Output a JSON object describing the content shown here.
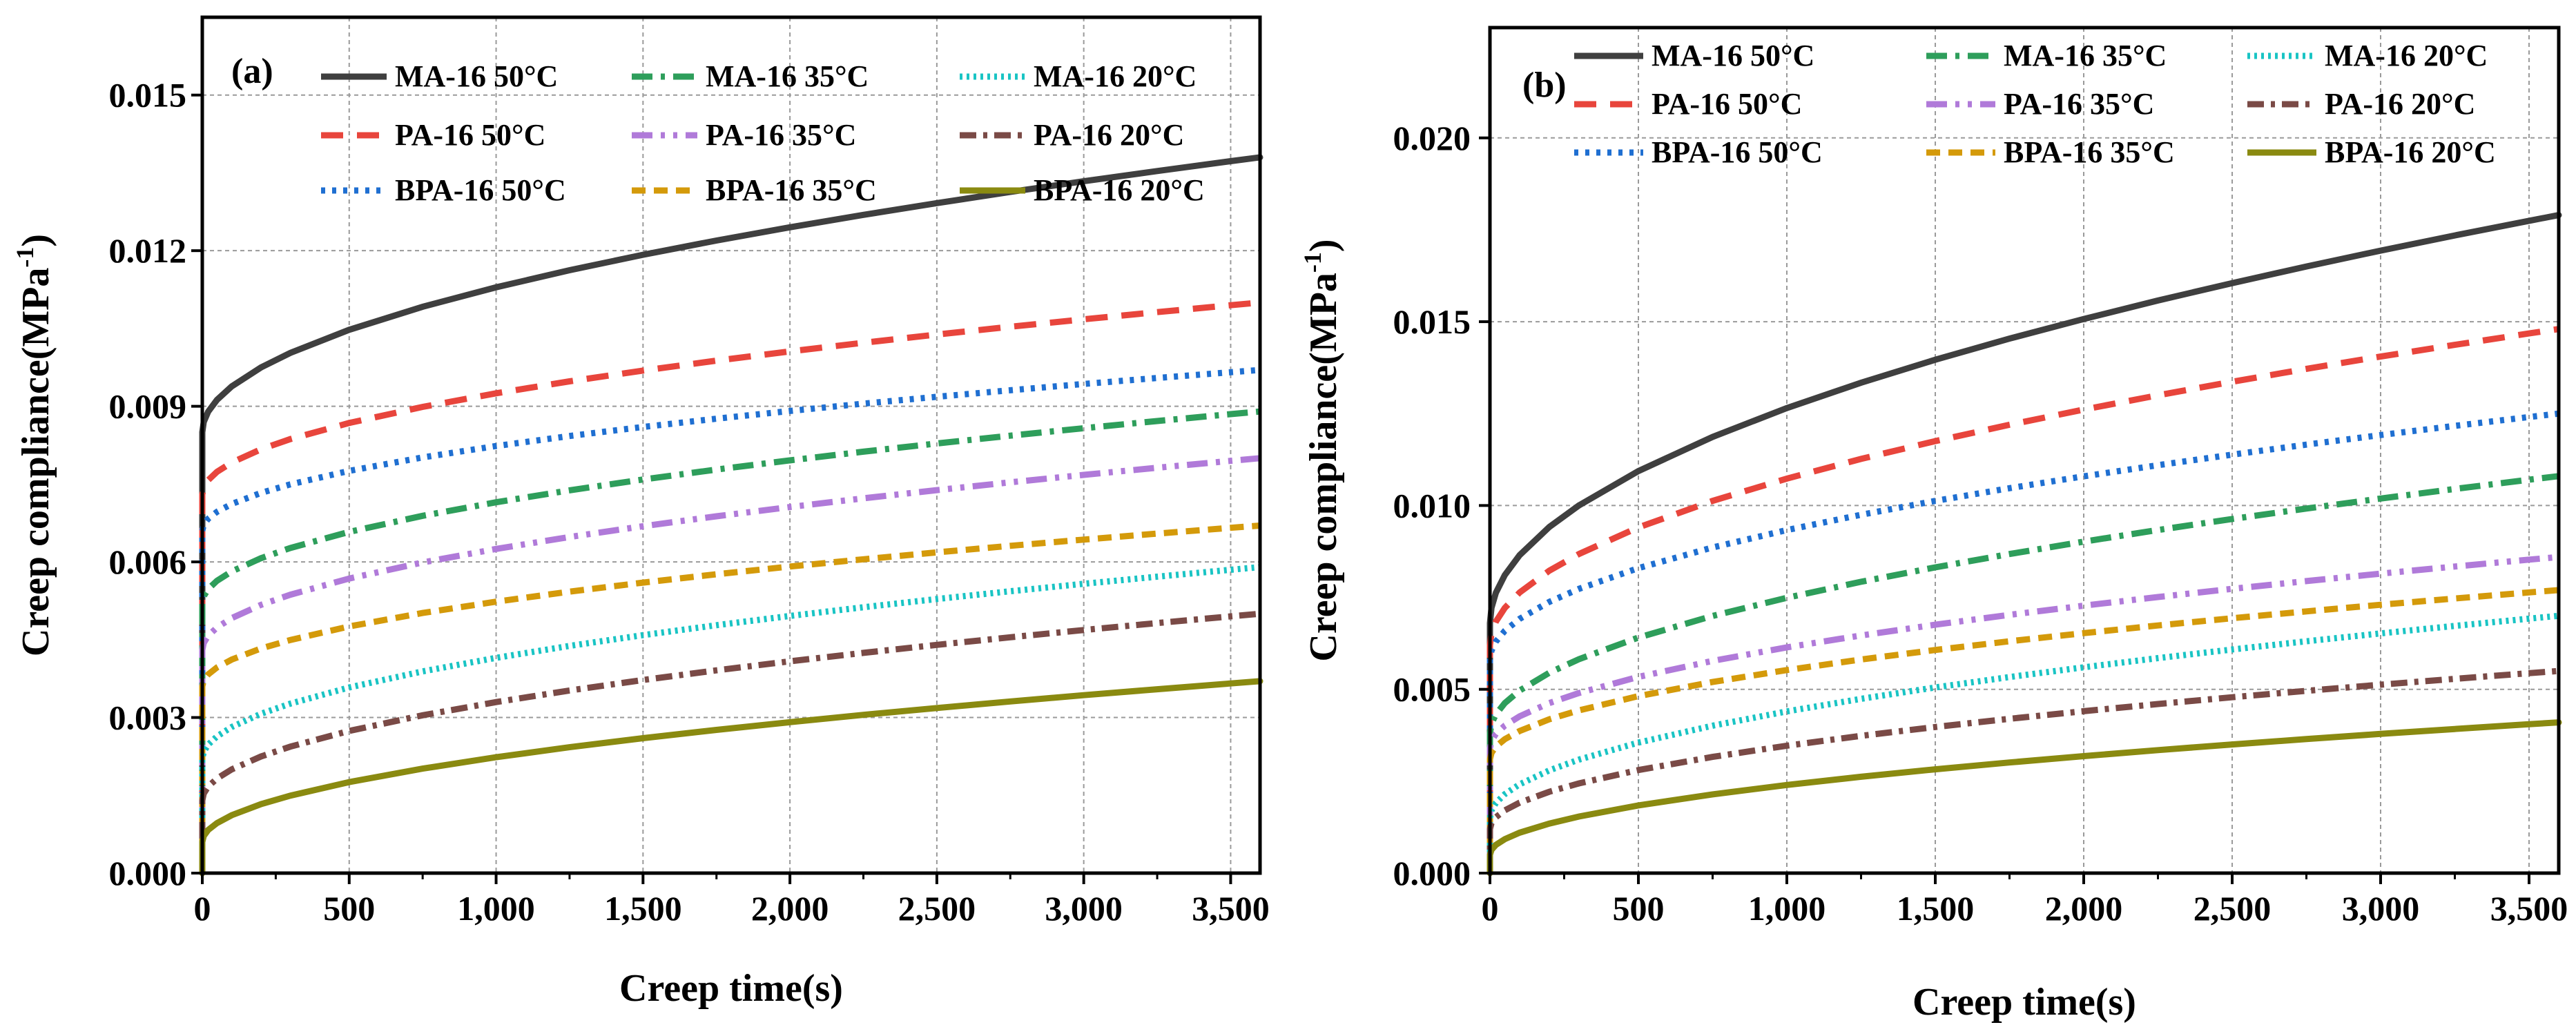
{
  "chart_data": [
    {
      "type": "line",
      "panel_label": "(a)",
      "xlabel": "Creep time(s)",
      "ylabel_main": "Creep compliance(MPa",
      "ylabel_sup": "-1",
      "ylabel_close": ")",
      "xlim": [
        0,
        3600
      ],
      "ylim": [
        0,
        0.0165
      ],
      "xticks": [
        0,
        500,
        1000,
        1500,
        2000,
        2500,
        3000,
        3500
      ],
      "xtick_labels": [
        "0",
        "500",
        "1,000",
        "1,500",
        "2,000",
        "2,500",
        "3,000",
        "3,500"
      ],
      "yticks": [
        0,
        0.003,
        0.006,
        0.009,
        0.012,
        0.015
      ],
      "ytick_labels": [
        "0.000",
        "0.003",
        "0.006",
        "0.009",
        "0.012",
        "0.015"
      ],
      "grid": true,
      "legend_position": "top",
      "x": [
        0,
        5,
        20,
        50,
        100,
        200,
        300,
        500,
        750,
        1000,
        1250,
        1500,
        1750,
        2000,
        2250,
        2500,
        2750,
        3000,
        3250,
        3500,
        3600
      ],
      "series": [
        {
          "name": "MA-16 50°C",
          "start": 0.0085,
          "end": 0.0138
        },
        {
          "name": "PA-16 50°C",
          "start": 0.0073,
          "end": 0.011
        },
        {
          "name": "BPA-16 50°C",
          "start": 0.0066,
          "end": 0.0097
        },
        {
          "name": "MA-16 35°C",
          "start": 0.0052,
          "end": 0.0089
        },
        {
          "name": "PA-16 35°C",
          "start": 0.0043,
          "end": 0.008
        },
        {
          "name": "BPA-16 35°C",
          "start": 0.0036,
          "end": 0.0067
        },
        {
          "name": "MA-16 20°C",
          "start": 0.0022,
          "end": 0.0059
        },
        {
          "name": "PA-16 20°C",
          "start": 0.0014,
          "end": 0.005
        },
        {
          "name": "BPA-16 20°C",
          "start": 0.0006,
          "end": 0.0037
        }
      ]
    },
    {
      "type": "line",
      "panel_label": "(b)",
      "xlabel": "Creep time(s)",
      "ylabel_main": "Creep compliance(MPa",
      "ylabel_sup": "-1",
      "ylabel_close": ")",
      "xlim": [
        0,
        3600
      ],
      "ylim": [
        0,
        0.023
      ],
      "xticks": [
        0,
        500,
        1000,
        1500,
        2000,
        2500,
        3000,
        3500
      ],
      "xtick_labels": [
        "0",
        "500",
        "1,000",
        "1,500",
        "2,000",
        "2,500",
        "3,000",
        "3,500"
      ],
      "yticks": [
        0,
        0.005,
        0.01,
        0.015,
        0.02
      ],
      "ytick_labels": [
        "0.000",
        "0.005",
        "0.010",
        "0.015",
        "0.020"
      ],
      "grid": true,
      "legend_position": "top",
      "x": [
        0,
        5,
        20,
        50,
        100,
        200,
        300,
        500,
        750,
        1000,
        1250,
        1500,
        1750,
        2000,
        2250,
        2500,
        2750,
        3000,
        3250,
        3500,
        3600
      ],
      "series": [
        {
          "name": "MA-16 50°C",
          "start": 0.0068,
          "end": 0.0179
        },
        {
          "name": "PA-16 50°C",
          "start": 0.0062,
          "end": 0.0148
        },
        {
          "name": "BPA-16 50°C",
          "start": 0.0058,
          "end": 0.0125
        },
        {
          "name": "MA-16 35°C",
          "start": 0.0038,
          "end": 0.0108
        },
        {
          "name": "PA-16 35°C",
          "start": 0.0034,
          "end": 0.0086
        },
        {
          "name": "BPA-16 35°C",
          "start": 0.0031,
          "end": 0.0077
        },
        {
          "name": "MA-16 20°C",
          "start": 0.0015,
          "end": 0.007
        },
        {
          "name": "PA-16 20°C",
          "start": 0.0012,
          "end": 0.0055
        },
        {
          "name": "BPA-16 20°C",
          "start": 0.0005,
          "end": 0.0041
        }
      ]
    }
  ],
  "series_styles": [
    {
      "color": "#3f3f3f",
      "dash": "none"
    },
    {
      "color": "#e8453c",
      "dash": "32 20"
    },
    {
      "color": "#1f6fd1",
      "dash": "6 10"
    },
    {
      "color": "#2e9e5b",
      "dash": "30 12 6 12"
    },
    {
      "color": "#b07ad9",
      "dash": "30 12 6 12 6 12"
    },
    {
      "color": "#d49a0a",
      "dash": "20 12"
    },
    {
      "color": "#19c4c4",
      "dash": "4 6"
    },
    {
      "color": "#7a4a46",
      "dash": "24 10 6 10"
    },
    {
      "color": "#8a8a10",
      "dash": "none"
    }
  ]
}
